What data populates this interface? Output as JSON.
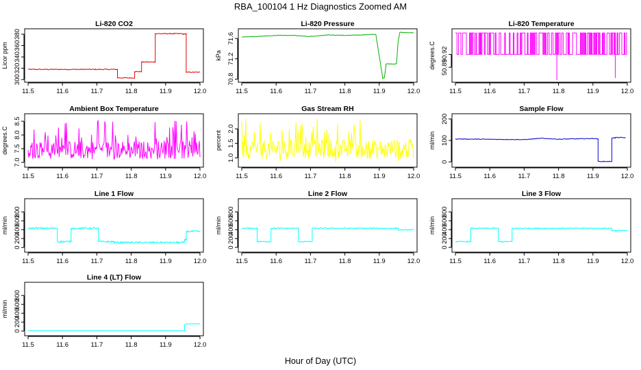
{
  "figure": {
    "title": "RBA_100104  1 Hz Diagnostics Zoomed AM",
    "xlabel": "Hour of Day (UTC)"
  },
  "chart_data": [
    {
      "type": "line",
      "title": "Li-820 CO2",
      "ylabel": "Licor ppm",
      "color": "#e00000",
      "xlim": [
        11.5,
        12.0
      ],
      "ylim": [
        299,
        386
      ],
      "xticks": [
        "11.5",
        "11.6",
        "11.7",
        "11.8",
        "11.9",
        "12.0"
      ],
      "yticks": [
        "300",
        "320",
        "340",
        "360",
        "380"
      ],
      "series": [
        {
          "name": "CO2",
          "x": [
            11.5,
            11.76,
            11.76,
            11.81,
            11.81,
            11.83,
            11.83,
            11.87,
            11.87,
            11.95,
            11.95,
            11.96,
            11.96,
            12.0
          ],
          "y": [
            318,
            318,
            303,
            303,
            314,
            314,
            331,
            331,
            381,
            381,
            380,
            381,
            313,
            313
          ]
        }
      ],
      "noise": 0.8
    },
    {
      "type": "line",
      "title": "Li-820 Pressure",
      "ylabel": "kPa",
      "color": "#00b000",
      "xlim": [
        11.5,
        12.0
      ],
      "ylim": [
        70.78,
        71.75
      ],
      "xticks": [
        "11.5",
        "11.6",
        "11.7",
        "11.8",
        "11.9",
        "12.0"
      ],
      "yticks": [
        "70.8",
        "71.2",
        "71.6"
      ],
      "series": [
        {
          "name": "Pressure",
          "x": [
            11.5,
            11.55,
            11.6,
            11.65,
            11.7,
            11.75,
            11.8,
            11.85,
            11.89,
            11.91,
            11.915,
            11.92,
            11.95,
            11.955,
            11.96,
            12.0
          ],
          "y": [
            71.63,
            71.64,
            71.66,
            71.66,
            71.64,
            71.67,
            71.66,
            71.67,
            71.68,
            70.82,
            70.83,
            71.1,
            71.1,
            71.55,
            71.72,
            71.71
          ]
        }
      ],
      "noise": 0.005
    },
    {
      "type": "line",
      "title": "Li-820 Temperature",
      "ylabel": "degrees.C",
      "color": "#ff00ff",
      "xlim": [
        11.5,
        12.0
      ],
      "ylim": [
        50.86,
        50.975
      ],
      "xticks": [
        "11.5",
        "11.6",
        "11.7",
        "11.8",
        "11.9",
        "12.0"
      ],
      "yticks": [
        "50.89",
        "50.92"
      ],
      "series": [
        {
          "name": "Temperature",
          "x": [
            11.5,
            12.0
          ],
          "y": [
            50.95,
            50.95
          ]
        }
      ],
      "low": 50.92,
      "high": 50.97,
      "spikes": [
        {
          "x": 11.795,
          "y": 50.86
        },
        {
          "x": 11.965,
          "y": 50.865
        }
      ]
    },
    {
      "type": "line",
      "title": "Ambient Box Temperature",
      "ylabel": "degrees.C",
      "color": "#ff00ff",
      "xlim": [
        11.5,
        12.0
      ],
      "ylim": [
        6.9,
        8.7
      ],
      "xticks": [
        "11.5",
        "11.6",
        "11.7",
        "11.8",
        "11.9",
        "12.0"
      ],
      "yticks": [
        "7.0",
        "7.5",
        "8.0",
        "8.5"
      ],
      "series": [
        {
          "name": "Ambient",
          "x": [
            11.5,
            12.0
          ],
          "y": [
            7.45,
            7.45
          ]
        }
      ],
      "range": [
        7.1,
        8.6
      ]
    },
    {
      "type": "line",
      "title": "Gas Stream RH",
      "ylabel": "percent",
      "color": "#ffff00",
      "xlim": [
        11.5,
        12.0
      ],
      "ylim": [
        0.75,
        2.45
      ],
      "xticks": [
        "11.5",
        "11.6",
        "11.7",
        "11.8",
        "11.9",
        "12.0"
      ],
      "yticks": [
        "1.0",
        "1.5",
        "2.0"
      ],
      "series": [
        {
          "name": "RH",
          "x": [
            11.5,
            12.0
          ],
          "y": [
            1.3,
            1.3
          ]
        }
      ],
      "range": [
        0.85,
        2.35
      ]
    },
    {
      "type": "line",
      "title": "Sample Flow",
      "ylabel": "ml/min",
      "color": "#0000d0",
      "xlim": [
        11.5,
        12.0
      ],
      "ylim": [
        -15,
        215
      ],
      "xticks": [
        "11.5",
        "11.6",
        "11.7",
        "11.8",
        "11.9",
        "12.0"
      ],
      "yticks": [
        "0",
        "100",
        "200"
      ],
      "series": [
        {
          "name": "Sample",
          "x": [
            11.5,
            11.7,
            11.75,
            11.8,
            11.9,
            11.915,
            11.915,
            11.955,
            11.955,
            11.965,
            11.965,
            11.995
          ],
          "y": [
            107,
            104,
            110,
            106,
            109,
            108,
            2,
            2,
            112,
            112,
            114,
            113
          ]
        }
      ],
      "noise": 1.5
    },
    {
      "type": "line",
      "title": "Line 1 Flow",
      "ylabel": "ml/min",
      "color": "#00ffff",
      "xlim": [
        11.5,
        12.0
      ],
      "ylim": [
        -60,
        1050
      ],
      "xticks": [
        "11.5",
        "11.6",
        "11.7",
        "11.8",
        "11.9",
        "12.0"
      ],
      "yticks": [
        "0",
        "200",
        "400",
        "600",
        "800"
      ],
      "series": [
        {
          "name": "Line 1",
          "x": [
            11.5,
            11.585,
            11.585,
            11.625,
            11.625,
            11.705,
            11.705,
            11.75,
            11.75,
            11.955,
            11.955,
            11.96,
            11.96,
            12.0
          ],
          "y": [
            430,
            430,
            130,
            130,
            430,
            430,
            130,
            130,
            110,
            110,
            170,
            170,
            360,
            360
          ]
        }
      ],
      "noise": 20
    },
    {
      "type": "line",
      "title": "Line 2 Flow",
      "ylabel": "ml/min",
      "color": "#00ffff",
      "xlim": [
        11.5,
        12.0
      ],
      "ylim": [
        -60,
        1050
      ],
      "xticks": [
        "11.5",
        "11.6",
        "11.7",
        "11.8",
        "11.9",
        "12.0"
      ],
      "yticks": [
        "0",
        "200",
        "400",
        "600",
        "800"
      ],
      "series": [
        {
          "name": "Line 2",
          "x": [
            11.5,
            11.545,
            11.545,
            11.585,
            11.585,
            11.665,
            11.665,
            11.705,
            11.705,
            11.955,
            11.955,
            12.0
          ],
          "y": [
            430,
            430,
            130,
            130,
            430,
            430,
            130,
            130,
            430,
            430,
            395,
            395
          ]
        }
      ],
      "noise": 12
    },
    {
      "type": "line",
      "title": "Line 3 Flow",
      "ylabel": "ml/min",
      "color": "#00ffff",
      "xlim": [
        11.5,
        12.0
      ],
      "ylim": [
        -60,
        1050
      ],
      "xticks": [
        "11.5",
        "11.6",
        "11.7",
        "11.8",
        "11.9",
        "12.0"
      ],
      "yticks": [
        "0",
        "200",
        "400",
        "600",
        "800"
      ],
      "series": [
        {
          "name": "Line 3",
          "x": [
            11.5,
            11.545,
            11.545,
            11.625,
            11.625,
            11.665,
            11.665,
            11.955,
            11.955,
            12.0
          ],
          "y": [
            130,
            130,
            430,
            430,
            130,
            130,
            430,
            430,
            380,
            380
          ]
        }
      ],
      "noise": 12
    },
    {
      "type": "line",
      "title": "Line 4 (LT) Flow",
      "ylabel": "ml/min",
      "color": "#00ffff",
      "xlim": [
        11.5,
        12.0
      ],
      "ylim": [
        -60,
        1050
      ],
      "xticks": [
        "11.5",
        "11.6",
        "11.7",
        "11.8",
        "11.9",
        "12.0"
      ],
      "yticks": [
        "0",
        "200",
        "400",
        "600",
        "800"
      ],
      "series": [
        {
          "name": "Line 4",
          "x": [
            11.5,
            11.955,
            11.955,
            11.96,
            11.96,
            12.0
          ],
          "y": [
            5,
            5,
            140,
            160,
            160,
            160
          ]
        }
      ],
      "noise": 0
    }
  ]
}
